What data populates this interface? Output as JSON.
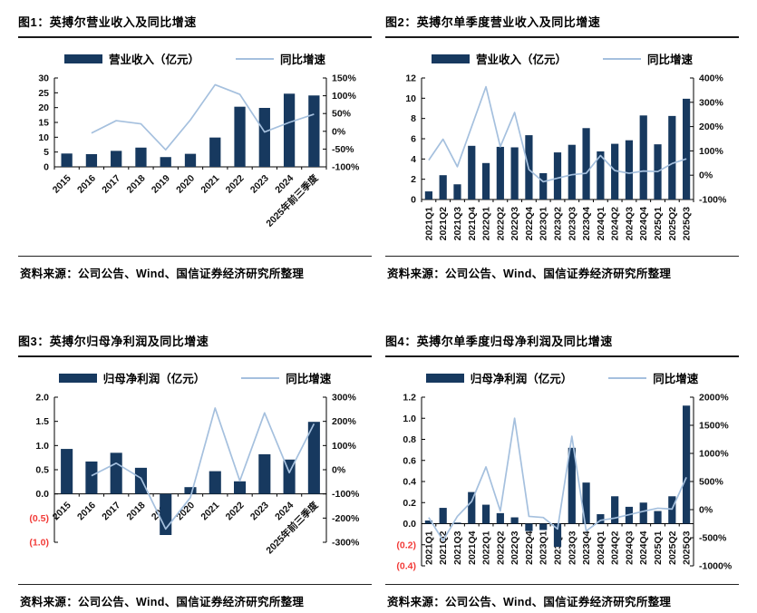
{
  "colors": {
    "bar": "#17395f",
    "line": "#a5c0de",
    "axis": "#000000",
    "tick_label": "#111111",
    "negative_label": "#f23b38"
  },
  "chart_data": [
    {
      "id": "fig1",
      "type": "bar",
      "title": "图1：英搏尔营业收入及同比增速",
      "legend_bar": "营业收入（亿元）",
      "legend_line": "同比增速",
      "categories": [
        "2015",
        "2016",
        "2017",
        "2018",
        "2019",
        "2020",
        "2021",
        "2022",
        "2023",
        "2024",
        "2025年前三季度"
      ],
      "series": [
        {
          "name": "营业收入（亿元）",
          "type": "bar",
          "axis": "left",
          "values": [
            4.5,
            4.3,
            5.4,
            6.5,
            3.3,
            4.4,
            9.9,
            20.3,
            19.9,
            24.7,
            24.1
          ]
        },
        {
          "name": "同比增速",
          "type": "line",
          "axis": "right",
          "values": [
            null,
            -5,
            30,
            21,
            -52,
            32,
            131,
            104,
            -2,
            25,
            48
          ]
        }
      ],
      "left_axis": {
        "min": 0,
        "max": 30,
        "ticks": [
          "30",
          "25",
          "20",
          "15",
          "10",
          "5",
          "0"
        ]
      },
      "right_axis": {
        "min": -100,
        "max": 150,
        "ticks": [
          "150%",
          "100%",
          "50%",
          "0%",
          "-50%",
          "-100%"
        ]
      },
      "x_label_rotation": 45,
      "source": "资料来源：公司公告、Wind、国信证券经济研究所整理"
    },
    {
      "id": "fig2",
      "type": "bar",
      "title": "图2：英搏尔单季度营业收入及同比增速",
      "legend_bar": "营业收入（亿元）",
      "legend_line": "同比增速",
      "categories": [
        "2021Q1",
        "2021Q2",
        "2021Q3",
        "2021Q4",
        "2022Q1",
        "2022Q2",
        "2022Q3",
        "2022Q4",
        "2023Q1",
        "2023Q2",
        "2023Q3",
        "2023Q4",
        "2024Q1",
        "2024Q2",
        "2024Q3",
        "2024Q4",
        "2025Q1",
        "2025Q2",
        "2025Q3"
      ],
      "series": [
        {
          "name": "营业收入（亿元）",
          "type": "bar",
          "axis": "left",
          "values": [
            0.8,
            2.4,
            1.5,
            5.3,
            3.6,
            5.2,
            5.15,
            6.35,
            2.6,
            4.65,
            5.4,
            7.05,
            4.75,
            5.5,
            5.85,
            8.3,
            5.45,
            8.25,
            9.95
          ]
        },
        {
          "name": "同比增速",
          "type": "line",
          "axis": "right",
          "values": [
            62,
            148,
            35,
            200,
            364,
            117,
            258,
            23,
            -27,
            -12,
            2,
            8,
            81,
            19,
            8,
            17,
            15,
            48,
            67
          ]
        }
      ],
      "left_axis": {
        "min": 0,
        "max": 12,
        "ticks": [
          "12",
          "10",
          "8",
          "6",
          "4",
          "2",
          "0"
        ]
      },
      "right_axis": {
        "min": -100,
        "max": 400,
        "ticks": [
          "400%",
          "300%",
          "200%",
          "100%",
          "0%",
          "-100%"
        ]
      },
      "x_label_rotation": 90,
      "source": "资料来源：公司公告、Wind、国信证券经济研究所整理"
    },
    {
      "id": "fig3",
      "type": "bar",
      "title": "图3：英搏尔归母净利润及同比增速",
      "legend_bar": "归母净利润（亿元）",
      "legend_line": "同比增速",
      "categories": [
        "2015",
        "2016",
        "2017",
        "2018",
        "2019",
        "2020",
        "2021",
        "2022",
        "2023",
        "2024",
        "2025年前三季度"
      ],
      "series": [
        {
          "name": "归母净利润（亿元）",
          "type": "bar",
          "axis": "left",
          "values": [
            0.93,
            0.67,
            0.85,
            0.54,
            -0.85,
            0.14,
            0.47,
            0.26,
            0.82,
            0.71,
            1.49
          ]
        },
        {
          "name": "同比增速",
          "type": "line",
          "axis": "right",
          "values": [
            null,
            -25,
            27,
            -35,
            -245,
            -115,
            255,
            -46,
            235,
            -12,
            190
          ]
        }
      ],
      "left_axis": {
        "min": -1.0,
        "max": 2.0,
        "ticks": [
          "2.0",
          "1.5",
          "1.0",
          "0.5",
          "0.0",
          "(0.5)",
          "(1.0)"
        ]
      },
      "right_axis": {
        "min": -300,
        "max": 300,
        "ticks": [
          "300%",
          "200%",
          "100%",
          "0%",
          "-100%",
          "-200%",
          "-300%"
        ]
      },
      "x_label_rotation": 45,
      "source": "资料来源：公司公告、Wind、国信证券经济研究所整理"
    },
    {
      "id": "fig4",
      "type": "bar",
      "title": "图4：英搏尔单季度归母净利润及同比增速",
      "legend_bar": "归母净利润（亿元）",
      "legend_line": "同比增速",
      "categories": [
        "2021Q1",
        "2021Q2",
        "2021Q3",
        "2021Q4",
        "2022Q1",
        "2022Q2",
        "2022Q3",
        "2022Q4",
        "2023Q1",
        "2023Q2",
        "2023Q3",
        "2023Q4",
        "2024Q1",
        "2024Q2",
        "2024Q3",
        "2024Q4",
        "2025Q1",
        "2025Q2",
        "2025Q3"
      ],
      "series": [
        {
          "name": "归母净利润（亿元）",
          "type": "bar",
          "axis": "left",
          "values": [
            0.03,
            0.15,
            0.01,
            0.3,
            0.18,
            0.1,
            0.06,
            -0.07,
            -0.06,
            -0.22,
            0.72,
            0.39,
            0.09,
            0.26,
            0.16,
            0.2,
            0.12,
            0.26,
            1.12
          ]
        },
        {
          "name": "同比增速",
          "type": "line",
          "axis": "right",
          "values": [
            -140,
            -550,
            -120,
            145,
            760,
            -25,
            1625,
            -120,
            -140,
            -345,
            1305,
            -380,
            -190,
            -150,
            -90,
            -30,
            25,
            10,
            575
          ]
        }
      ],
      "left_axis": {
        "min": -0.4,
        "max": 1.2,
        "ticks": [
          "1.2",
          "1.0",
          "0.8",
          "0.6",
          "0.4",
          "0.2",
          "0.0",
          "(0.2)",
          "(0.4)"
        ]
      },
      "right_axis": {
        "min": -1000,
        "max": 2000,
        "ticks": [
          "2000%",
          "1500%",
          "1000%",
          "500%",
          "0%",
          "-500%",
          "-1000%"
        ]
      },
      "x_label_rotation": 90,
      "source": "资料来源：公司公告、Wind、国信证券经济研究所整理"
    }
  ]
}
